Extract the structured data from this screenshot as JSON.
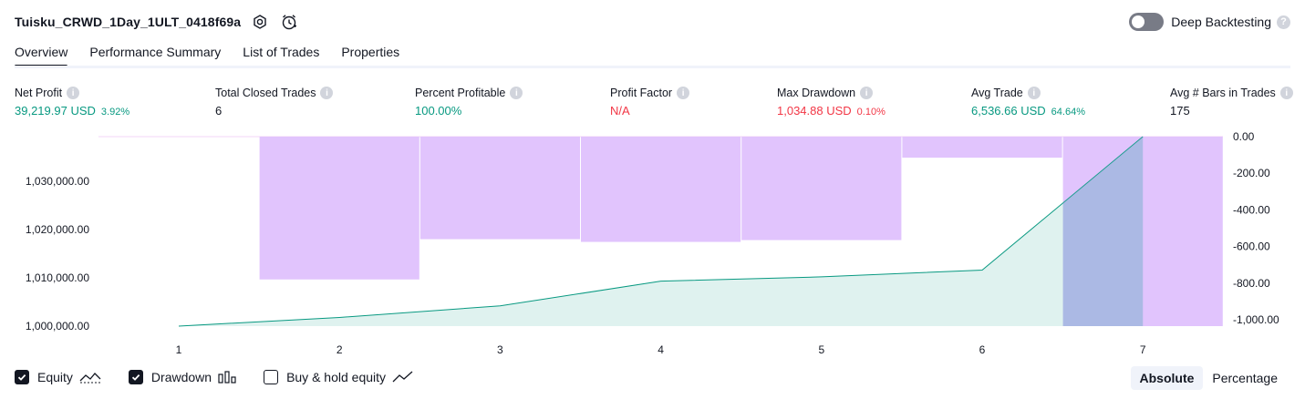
{
  "header": {
    "title": "Tuisku_CRWD_1Day_1ULT_0418f69a",
    "deep_backtesting_label": "Deep Backtesting"
  },
  "tabs": [
    {
      "label": "Overview",
      "active": true
    },
    {
      "label": "Performance Summary",
      "active": false
    },
    {
      "label": "List of Trades",
      "active": false
    },
    {
      "label": "Properties",
      "active": false
    }
  ],
  "metrics": [
    {
      "label": "Net Profit",
      "value": "39,219.97 USD",
      "pct": "3.92%",
      "color": "#089981"
    },
    {
      "label": "Total Closed Trades",
      "value": "6",
      "pct": "",
      "color": "#131722"
    },
    {
      "label": "Percent Profitable",
      "value": "100.00%",
      "pct": "",
      "color": "#089981"
    },
    {
      "label": "Profit Factor",
      "value": "N/A",
      "pct": "",
      "color": "#f23645"
    },
    {
      "label": "Max Drawdown",
      "value": "1,034.88 USD",
      "pct": "0.10%",
      "color": "#f23645"
    },
    {
      "label": "Avg Trade",
      "value": "6,536.66 USD",
      "pct": "64.64%",
      "color": "#089981"
    },
    {
      "label": "Avg # Bars in Trades",
      "value": "175",
      "pct": "",
      "color": "#131722"
    }
  ],
  "chart_data": {
    "type": "line",
    "x_ticks": [
      "1",
      "2",
      "3",
      "4",
      "5",
      "6",
      "7"
    ],
    "left_axis": {
      "ticks": [
        "1,030,000.00",
        "1,020,000.00",
        "1,010,000.00",
        "1,000,000.00"
      ],
      "tick_values": [
        1030000,
        1020000,
        1010000,
        1000000
      ],
      "range": [
        1000000,
        1039220
      ]
    },
    "right_axis": {
      "ticks": [
        "0.00",
        "-200.00",
        "-400.00",
        "-600.00",
        "-800.00",
        "-1,000.00"
      ],
      "tick_values": [
        0,
        -200,
        -400,
        -600,
        -800,
        -1000
      ],
      "range": [
        -1034.88,
        0
      ]
    },
    "series": [
      {
        "name": "Equity",
        "kind": "area",
        "color": "#089981",
        "x": [
          1,
          2,
          3,
          4,
          5,
          6,
          7
        ],
        "values": [
          1000000,
          1001800,
          1004200,
          1009300,
          1010200,
          1011600,
          1039220
        ]
      },
      {
        "name": "Drawdown",
        "kind": "bar",
        "color": "#e1c4fd",
        "categories": [
          2,
          3,
          4,
          5,
          6,
          7
        ],
        "values": [
          -780,
          -560,
          -575,
          -565,
          -115,
          -1034.88
        ]
      }
    ]
  },
  "legend": [
    {
      "label": "Equity",
      "checked": true
    },
    {
      "label": "Drawdown",
      "checked": true
    },
    {
      "label": "Buy & hold equity",
      "checked": false
    }
  ],
  "scale_toggle": {
    "options": [
      "Absolute",
      "Percentage"
    ],
    "selected": "Absolute"
  }
}
